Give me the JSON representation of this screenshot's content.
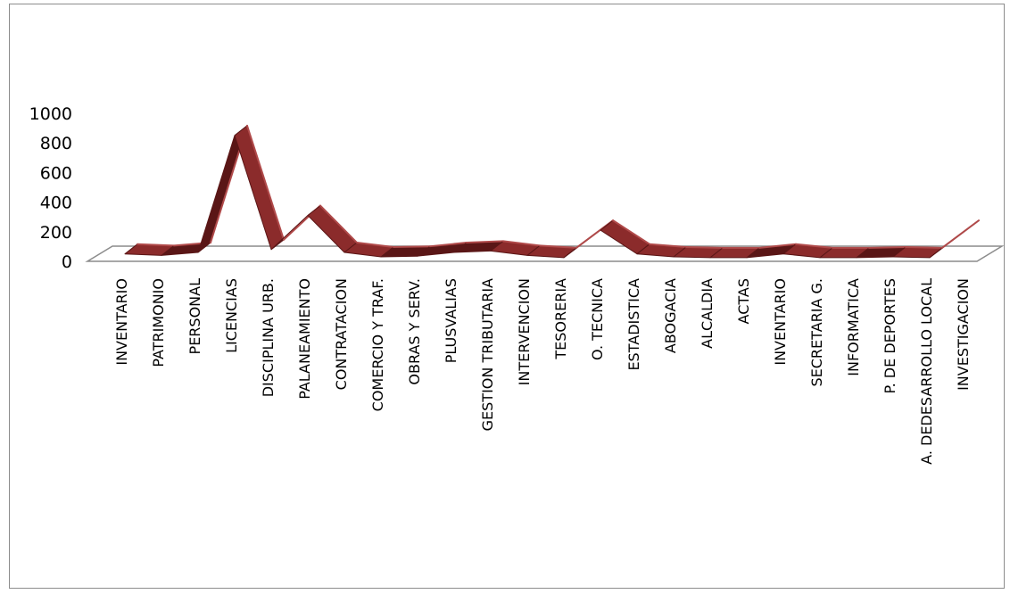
{
  "chart_data": {
    "type": "line",
    "style": "3d-ribbon",
    "title": "",
    "xlabel": "",
    "ylabel": "",
    "ylim": [
      0,
      1000
    ],
    "yticks": [
      0,
      200,
      400,
      600,
      800,
      1000
    ],
    "grid": false,
    "legend": "none",
    "categories": [
      "INVENTARIO",
      "PATRIMONIO",
      "PERSONAL",
      "LICENCIAS",
      "DISCIPLINA URB.",
      "PALANEAMIENTO",
      "CONTRATACION",
      "COMERCIO Y TRAF.",
      "OBRAS Y SERV.",
      "PLUSVALIAS",
      "GESTION TRIBUTARIA",
      "INTERVENCION",
      "TESORERIA",
      "O. TECNICA",
      "ESTADISTICA",
      "ABOGACIA",
      "ALCALDIA",
      "ACTAS",
      "INVENTARIO",
      "SECRETARIA G.",
      "INFORMATICA",
      "P. DE DEPORTES",
      "A. DEDESARROLLO LOCAL",
      "INVESTIGACION"
    ],
    "series": [
      {
        "values": [
          50,
          40,
          60,
          850,
          80,
          310,
          60,
          30,
          35,
          60,
          70,
          40,
          25,
          210,
          50,
          30,
          25,
          25,
          50,
          25,
          25,
          30,
          25,
          210
        ]
      }
    ],
    "colors": {
      "line": "#8b2b2b",
      "line_dark": "#5a1616",
      "line_light": "#b04a4a",
      "floor": "#8c8c8c"
    }
  }
}
